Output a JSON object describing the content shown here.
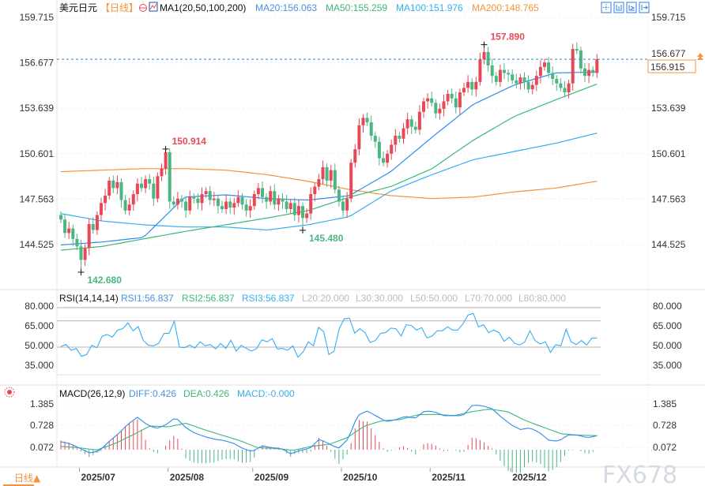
{
  "header": {
    "symbol": "美元日元",
    "period": "【日线】",
    "indicator": "MA1(20,50,100,200)",
    "ma20": "MA20:156.063",
    "ma50": "MA50:155.259",
    "ma100": "MA100:151.976",
    "ma200": "MA200:148.765",
    "toolbar_icons": [
      "crosshair-icon",
      "bar-chart-icon",
      "line-step-icon",
      "exit-icon"
    ]
  },
  "colors": {
    "up": "#e84855",
    "down": "#4bb583",
    "ma20": "#2d8cf0",
    "ma50": "#3cb878",
    "ma100": "#35aef0",
    "ma200": "#f7923a",
    "price_tag": "#f7923a",
    "rsi": "#35aef0",
    "diff": "#2d8cf0",
    "dea": "#3cb878"
  },
  "rsi_panel": {
    "title": "RSI(14,14,14)",
    "rsi1": "RSI1:56.837",
    "rsi2": "RSI2:56.837",
    "rsi3": "RSI3:56.837",
    "l20": "L20:20.000",
    "l30": "L30:30.000",
    "l50": "L50:50.000",
    "l70": "L70:70.000",
    "l80": "L80:80.000",
    "ticks": [
      "80.000",
      "65.000",
      "50.000",
      "35.000"
    ]
  },
  "macd_panel": {
    "title": "MACD(26,12,9)",
    "diff": "DIFF:0.426",
    "dea": "DEA:0.426",
    "macd": "MACD:-0.000",
    "ticks": [
      "1.385",
      "0.728",
      "0.072"
    ]
  },
  "footer": {
    "period_button": "日线▲",
    "watermark": "FX678"
  },
  "chart_data": {
    "type": "candlestick",
    "y_ticks": [
      "159.715",
      "156.677",
      "153.639",
      "150.601",
      "147.563",
      "144.525"
    ],
    "x_ticks": [
      "2025/07",
      "2025/08",
      "2025/09",
      "2025/10",
      "2025/11",
      "2025/12"
    ],
    "ylim": [
      142.2,
      159.715
    ],
    "current_price": "156.915",
    "hidden_tick": "156.677",
    "annotations": {
      "high_jul": "150.914",
      "low_jul": "142.680",
      "low_sep": "145.480",
      "high_nov": "157.890"
    },
    "closes": [
      146.2,
      145.3,
      145.6,
      144.9,
      144.4,
      143.5,
      144.3,
      145.9,
      145.5,
      146.5,
      147.3,
      147.8,
      148.8,
      148.3,
      148.7,
      147.5,
      146.8,
      147.2,
      147.9,
      148.6,
      148.3,
      148.9,
      148.6,
      147.6,
      149.1,
      149.6,
      150.7,
      147.4,
      147.2,
      147.6,
      147.4,
      146.8,
      147.7,
      147.6,
      147.3,
      147.9,
      148.1,
      147.5,
      147.6,
      147.1,
      146.9,
      147.4,
      147.0,
      147.3,
      147.7,
      147.2,
      146.8,
      147.1,
      147.9,
      148.3,
      147.7,
      147.4,
      148.1,
      147.2,
      147.6,
      147.4,
      146.9,
      147.3,
      146.5,
      147.1,
      146.3,
      146.6,
      147.9,
      148.4,
      148.9,
      149.7,
      148.8,
      149.5,
      148.2,
      147.4,
      146.8,
      147.6,
      150.0,
      150.9,
      152.5,
      153.0,
      152.7,
      151.8,
      151.4,
      150.3,
      150.0,
      150.6,
      151.2,
      151.8,
      151.6,
      152.3,
      152.9,
      152.4,
      152.2,
      153.4,
      154.1,
      154.3,
      154.0,
      153.3,
      153.6,
      154.1,
      154.6,
      154.3,
      153.7,
      154.7,
      155.0,
      155.4,
      154.9,
      155.4,
      156.9,
      157.4,
      156.5,
      155.8,
      155.4,
      156.2,
      156.0,
      155.9,
      155.5,
      155.3,
      155.7,
      155.4,
      154.9,
      155.2,
      155.8,
      156.4,
      156.7,
      156.0,
      155.6,
      155.3,
      155.0,
      154.7,
      155.3,
      157.6,
      157.5,
      156.3,
      155.8,
      156.2,
      156.0,
      156.915
    ],
    "ma20": [
      144.5,
      144.7,
      145.0,
      147.7,
      147.85,
      147.6,
      147.5,
      147.8,
      149.4,
      151.7,
      153.9,
      155.2,
      156.0,
      156.063
    ],
    "ma50": [
      144.15,
      144.4,
      144.9,
      145.4,
      145.85,
      146.3,
      146.8,
      147.7,
      148.4,
      149.6,
      151.5,
      153.1,
      154.2,
      155.259
    ],
    "ma100": [
      146.6,
      146.1,
      145.85,
      145.7,
      145.7,
      145.5,
      145.85,
      146.4,
      148.1,
      149.2,
      150.2,
      150.75,
      151.3,
      151.976
    ],
    "ma200": [
      149.4,
      149.5,
      149.6,
      149.6,
      149.5,
      149.2,
      148.75,
      148.2,
      147.8,
      147.6,
      147.7,
      148.05,
      148.3,
      148.765
    ],
    "rsi": [
      50.4,
      52,
      47.6,
      49,
      43,
      44.4,
      51.4,
      49.6,
      58.4,
      59.6,
      57.6,
      63,
      64,
      68.4,
      62.4,
      65.6,
      55,
      51.4,
      51,
      53,
      60.4,
      60.6,
      69.6,
      50,
      49.6,
      51.6,
      49.4,
      54,
      51,
      52,
      48.6,
      52.8,
      49,
      55.2,
      47,
      51.4,
      49,
      47,
      49,
      55.6,
      54,
      56.4,
      48.6,
      49,
      47.6,
      51,
      42.4,
      46.4,
      54,
      51,
      65,
      61.6,
      44.4,
      47,
      64,
      71.6,
      72,
      60.6,
      64,
      61,
      53.6,
      55,
      60.4,
      61,
      64.4,
      64,
      58.4,
      67,
      66.4,
      63,
      64.8,
      57,
      58.4,
      62.4,
      62.4,
      65.4,
      63,
      63,
      67.6,
      74.4,
      75.6,
      65.4,
      67,
      61,
      63,
      61,
      54.4,
      57.6,
      53,
      51.6,
      54,
      62.4,
      55,
      52.4,
      54,
      46,
      52,
      51,
      63.6,
      54,
      52,
      55,
      51.6,
      56.8,
      56.837
    ],
    "diff": [
      0.24,
      0.18,
      0.04,
      -0.1,
      -0.04,
      0.24,
      0.48,
      0.77,
      0.98,
      0.76,
      0.64,
      0.76,
      0.98,
      0.68,
      0.5,
      0.4,
      0.32,
      0.28,
      0.2,
      0.04,
      -0.06,
      0.12,
      0.06,
      0.04,
      -0.12,
      -0.02,
      0.04,
      0.32,
      0.18,
      0.04,
      0.32,
      1.04,
      1.17,
      1.01,
      0.85,
      0.91,
      1.01,
      0.95,
      1.17,
      1.15,
      1.03,
      1.03,
      1.03,
      1.35,
      1.33,
      1.25,
      0.99,
      0.76,
      0.61,
      0.66,
      0.52,
      0.28,
      0.26,
      0.45,
      0.44,
      0.36,
      0.426
    ],
    "dea": [
      0.1,
      0.06,
      -0.01,
      0.18,
      0.44,
      0.72,
      0.69,
      0.8,
      0.61,
      0.44,
      0.28,
      0.06,
      0.04,
      -0.02,
      0.1,
      0.16,
      0.36,
      0.72,
      0.88,
      0.91,
      1.06,
      1.07,
      1.03,
      1.15,
      1.23,
      1.15,
      0.88,
      0.68,
      0.48,
      0.44,
      0.426
    ]
  }
}
